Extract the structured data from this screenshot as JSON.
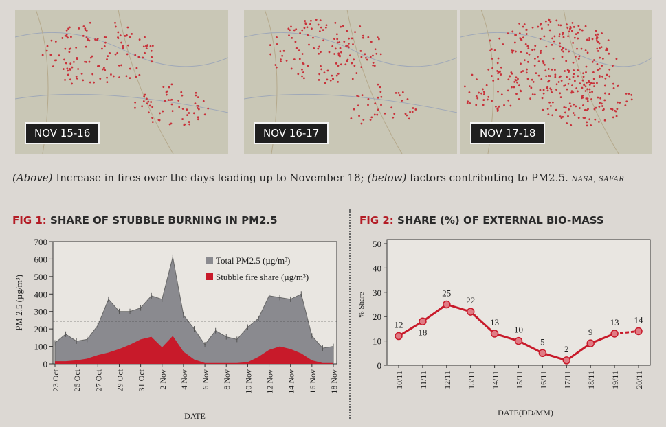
{
  "maps": [
    {
      "label": "NOV 15-16"
    },
    {
      "label": "NOV 16-17"
    },
    {
      "label": "NOV 17-18"
    }
  ],
  "caption": {
    "above": "(Above)",
    "text1": " Increase in fires over the days leading up to November 18; ",
    "below": "(below)",
    "text2": " factors contributing to PM2.5.",
    "source": "NASA, SAFAR"
  },
  "fig1": {
    "label": "FIG 1:",
    "title": "SHARE OF STUBBLE BURNING IN PM2.5"
  },
  "fig2": {
    "label": "FIG 2:",
    "title": "SHARE (%) OF EXTERNAL BIO-MASS"
  },
  "chart_data": [
    {
      "type": "area",
      "title": "SHARE OF STUBBLE BURNING IN PM2.5",
      "xlabel": "DATE",
      "ylabel": "PM 2.5 (µg/m³)",
      "ylim": [
        0,
        700
      ],
      "yticks": [
        0,
        100,
        200,
        300,
        400,
        500,
        600,
        700
      ],
      "x": [
        "23 Oct",
        "24 Oct",
        "25 Oct",
        "26 Oct",
        "27 Oct",
        "28 Oct",
        "29 Oct",
        "30 Oct",
        "31 Oct",
        "1 Nov",
        "2 Nov",
        "3 Nov",
        "4 Nov",
        "5 Nov",
        "6 Nov",
        "7 Nov",
        "8 Nov",
        "9 Nov",
        "10 Nov",
        "11 Nov",
        "12 Nov",
        "13 Nov",
        "14 Nov",
        "15 Nov",
        "16 Nov",
        "17 Nov",
        "18 Nov"
      ],
      "xtick_labels": [
        "23 Oct",
        "25 Oct",
        "27 Oct",
        "29 Oct",
        "31 Oct",
        "2 Nov",
        "4 Nov",
        "6 Nov",
        "8 Nov",
        "10 Nov",
        "12 Nov",
        "14 Nov",
        "16 Nov",
        "18 Nov"
      ],
      "series": [
        {
          "name": "Total PM2.5 (µg/m³)",
          "color": "#8a8a8f",
          "values": [
            120,
            170,
            130,
            140,
            220,
            370,
            300,
            300,
            320,
            390,
            370,
            610,
            280,
            200,
            110,
            190,
            155,
            140,
            210,
            260,
            390,
            380,
            370,
            400,
            160,
            90,
            100
          ]
        },
        {
          "name": "Stubble fire share (µg/m³)",
          "color": "#c81a2a",
          "values": [
            15,
            15,
            20,
            30,
            50,
            65,
            85,
            110,
            140,
            155,
            95,
            160,
            70,
            25,
            5,
            5,
            5,
            5,
            10,
            40,
            80,
            100,
            85,
            60,
            20,
            5,
            5
          ]
        }
      ],
      "reference_line": 245,
      "grid": false,
      "legend": "top-right"
    },
    {
      "type": "line",
      "title": "SHARE (%) OF EXTERNAL BIO-MASS",
      "xlabel": "DATE(DD/MM)",
      "ylabel": "% Share",
      "ylim": [
        0,
        50
      ],
      "yticks": [
        0,
        10,
        20,
        30,
        40,
        50
      ],
      "x": [
        "10/11",
        "11/11",
        "12/11",
        "13/11",
        "14/11",
        "15/11",
        "16/11",
        "17/11",
        "18/11",
        "19/11",
        "20/11"
      ],
      "series": [
        {
          "color": "#c81a2a",
          "values": [
            12,
            18,
            25,
            22,
            13,
            10,
            5,
            2,
            9,
            13,
            14
          ]
        }
      ],
      "grid": false
    }
  ]
}
